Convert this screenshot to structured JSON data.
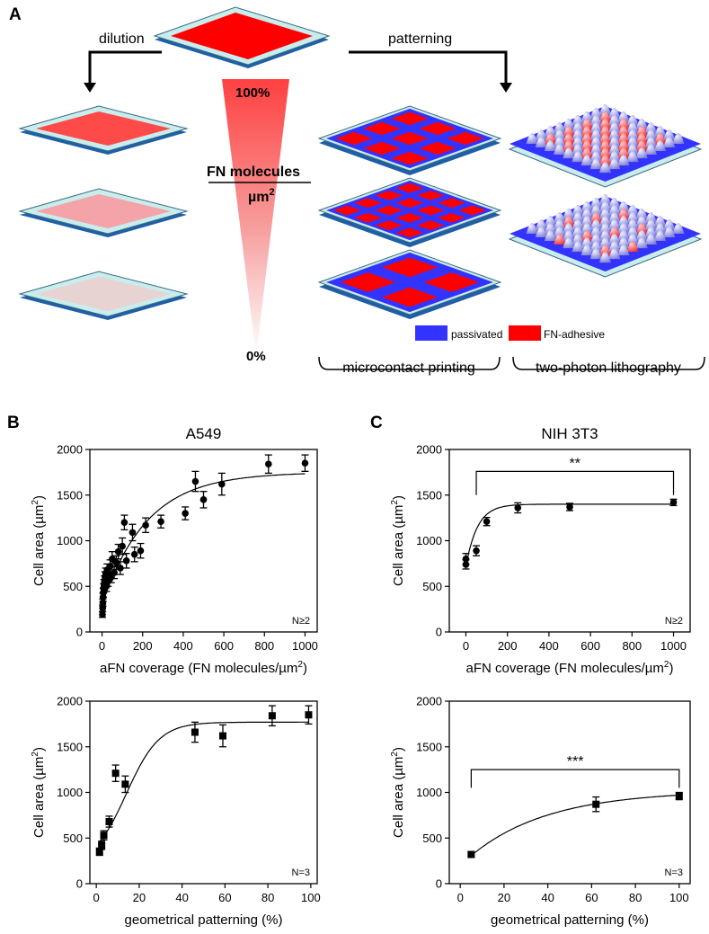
{
  "panel_a": {
    "label": "A",
    "dilution_label": "dilution",
    "patterning_label": "patterning",
    "gradient_top": "100%",
    "gradient_bottom": "0%",
    "fn_label": "FN molecules",
    "fn_unit": "µm",
    "fn_unit_exp": "2",
    "legend_passivated": "passivated",
    "legend_fn": "FN-adhesive",
    "method_microcontact": "microcontact printing",
    "method_twophoton": "two-photon lithography",
    "colors": {
      "red": "#ff0000",
      "blue": "#3333ff",
      "glass": "#c9ecec",
      "base": "#1f5fa8",
      "dilution": [
        "#ff4a4a",
        "#f4a3a8",
        "#e8d3d3"
      ]
    },
    "chip_rows": [
      3,
      4,
      2
    ],
    "bump_fn_ratio": [
      "high",
      "low"
    ]
  },
  "chart_data": [
    {
      "id": "b1",
      "panel_label": "B",
      "type": "scatter",
      "title": "A549",
      "xlabel": "aFN coverage (FN molecules/µm",
      "xlabel_exp": "2",
      "xlabel_end": ")",
      "ylabel": "Cell area (µm",
      "ylabel_exp": "2",
      "ylabel_end": ")",
      "xlim": [
        -60,
        1060
      ],
      "ylim": [
        0,
        2000
      ],
      "xticks": [
        0,
        200,
        400,
        600,
        800,
        1000
      ],
      "yticks": [
        0,
        500,
        1000,
        1500,
        2000
      ],
      "marker": "circle",
      "n_label": "N≥2",
      "points": [
        {
          "x": 2,
          "y": 190,
          "e": 30
        },
        {
          "x": 3,
          "y": 260,
          "e": 35
        },
        {
          "x": 4,
          "y": 320,
          "e": 40
        },
        {
          "x": 5,
          "y": 380,
          "e": 45
        },
        {
          "x": 6,
          "y": 430,
          "e": 50
        },
        {
          "x": 8,
          "y": 480,
          "e": 50
        },
        {
          "x": 10,
          "y": 520,
          "e": 55
        },
        {
          "x": 12,
          "y": 560,
          "e": 55
        },
        {
          "x": 15,
          "y": 600,
          "e": 60
        },
        {
          "x": 18,
          "y": 640,
          "e": 60
        },
        {
          "x": 22,
          "y": 500,
          "e": 55
        },
        {
          "x": 25,
          "y": 680,
          "e": 65
        },
        {
          "x": 30,
          "y": 560,
          "e": 60
        },
        {
          "x": 35,
          "y": 620,
          "e": 60
        },
        {
          "x": 40,
          "y": 720,
          "e": 70
        },
        {
          "x": 45,
          "y": 600,
          "e": 60
        },
        {
          "x": 50,
          "y": 800,
          "e": 80
        },
        {
          "x": 60,
          "y": 650,
          "e": 65
        },
        {
          "x": 70,
          "y": 760,
          "e": 75
        },
        {
          "x": 80,
          "y": 880,
          "e": 80
        },
        {
          "x": 90,
          "y": 700,
          "e": 70
        },
        {
          "x": 100,
          "y": 940,
          "e": 90
        },
        {
          "x": 110,
          "y": 1200,
          "e": 80
        },
        {
          "x": 120,
          "y": 780,
          "e": 80
        },
        {
          "x": 150,
          "y": 1090,
          "e": 90
        },
        {
          "x": 160,
          "y": 850,
          "e": 80
        },
        {
          "x": 190,
          "y": 890,
          "e": 80
        },
        {
          "x": 215,
          "y": 1170,
          "e": 80
        },
        {
          "x": 290,
          "y": 1210,
          "e": 70
        },
        {
          "x": 410,
          "y": 1300,
          "e": 70
        },
        {
          "x": 460,
          "y": 1650,
          "e": 110
        },
        {
          "x": 500,
          "y": 1450,
          "e": 90
        },
        {
          "x": 590,
          "y": 1620,
          "e": 120
        },
        {
          "x": 820,
          "y": 1840,
          "e": 100
        },
        {
          "x": 1000,
          "y": 1850,
          "e": 90
        }
      ],
      "fit": {
        "model": "exp",
        "ymin": 300,
        "ymax": 1750,
        "k": 0.0045,
        "x0": 0
      }
    },
    {
      "id": "c1",
      "panel_label": "C",
      "type": "scatter",
      "title": "NIH 3T3",
      "xlabel": "aFN coverage (FN molecules/µm",
      "xlabel_exp": "2",
      "xlabel_end": ")",
      "ylabel": "Cell area (µm",
      "ylabel_exp": "2",
      "ylabel_end": ")",
      "xlim": [
        -80,
        1080
      ],
      "ylim": [
        0,
        2000
      ],
      "xticks": [
        0,
        200,
        400,
        600,
        800,
        1000
      ],
      "yticks": [
        0,
        500,
        1000,
        1500,
        2000
      ],
      "marker": "circle",
      "n_label": "N≥2",
      "significance": {
        "label": "**",
        "x1": 50,
        "x2": 1000,
        "y": 1760,
        "tick_y": 1500
      },
      "points": [
        {
          "x": 0,
          "y": 740,
          "e": 50
        },
        {
          "x": 0,
          "y": 800,
          "e": 60
        },
        {
          "x": 50,
          "y": 890,
          "e": 55
        },
        {
          "x": 100,
          "y": 1210,
          "e": 45
        },
        {
          "x": 250,
          "y": 1360,
          "e": 55
        },
        {
          "x": 500,
          "y": 1370,
          "e": 40
        },
        {
          "x": 1000,
          "y": 1420,
          "e": 35
        }
      ],
      "fit": {
        "model": "exp",
        "ymin": 720,
        "ymax": 1400,
        "k": 0.018,
        "x0": 0
      }
    },
    {
      "id": "b2",
      "type": "scatter",
      "title": "",
      "xlabel": "geometrical patterning (%)",
      "xlabel_exp": "",
      "xlabel_end": "",
      "ylabel": "Cell area (µm",
      "ylabel_exp": "2",
      "ylabel_end": ")",
      "xlim": [
        -3,
        103
      ],
      "ylim": [
        0,
        2000
      ],
      "xticks": [
        0,
        20,
        40,
        60,
        80,
        100
      ],
      "yticks": [
        0,
        500,
        1000,
        1500,
        2000
      ],
      "marker": "square",
      "n_label": "N=3",
      "points": [
        {
          "x": 1.5,
          "y": 350,
          "e": 40
        },
        {
          "x": 2.5,
          "y": 420,
          "e": 45
        },
        {
          "x": 3.5,
          "y": 530,
          "e": 50
        },
        {
          "x": 6,
          "y": 680,
          "e": 60
        },
        {
          "x": 9,
          "y": 1210,
          "e": 90
        },
        {
          "x": 13.5,
          "y": 1090,
          "e": 90
        },
        {
          "x": 46,
          "y": 1660,
          "e": 110
        },
        {
          "x": 59,
          "y": 1620,
          "e": 120
        },
        {
          "x": 82,
          "y": 1840,
          "e": 110
        },
        {
          "x": 99,
          "y": 1850,
          "e": 100
        }
      ],
      "fit": {
        "model": "sigmoid",
        "ymin": 200,
        "ymax": 1770,
        "k": 0.13,
        "x0": 14
      }
    },
    {
      "id": "c2",
      "type": "scatter",
      "title": "",
      "xlabel": "geometrical patterning (%)",
      "xlabel_exp": "",
      "xlabel_end": "",
      "ylabel": "Cell area (µm",
      "ylabel_exp": "2",
      "ylabel_end": ")",
      "xlim": [
        -5,
        105
      ],
      "ylim": [
        0,
        2000
      ],
      "xticks": [
        0,
        20,
        40,
        60,
        80,
        100
      ],
      "yticks": [
        0,
        500,
        1000,
        1500,
        2000
      ],
      "marker": "square",
      "n_label": "N=3",
      "significance": {
        "label": "***",
        "x1": 5,
        "x2": 100,
        "y": 1250,
        "tick_y": 1050
      },
      "points": [
        {
          "x": 5,
          "y": 320,
          "e": 25
        },
        {
          "x": 62,
          "y": 870,
          "e": 80
        },
        {
          "x": 100,
          "y": 960,
          "e": 40
        }
      ],
      "fit": {
        "model": "exp",
        "ymin": 200,
        "ymax": 1020,
        "k": 0.028,
        "x0": 0
      }
    }
  ]
}
